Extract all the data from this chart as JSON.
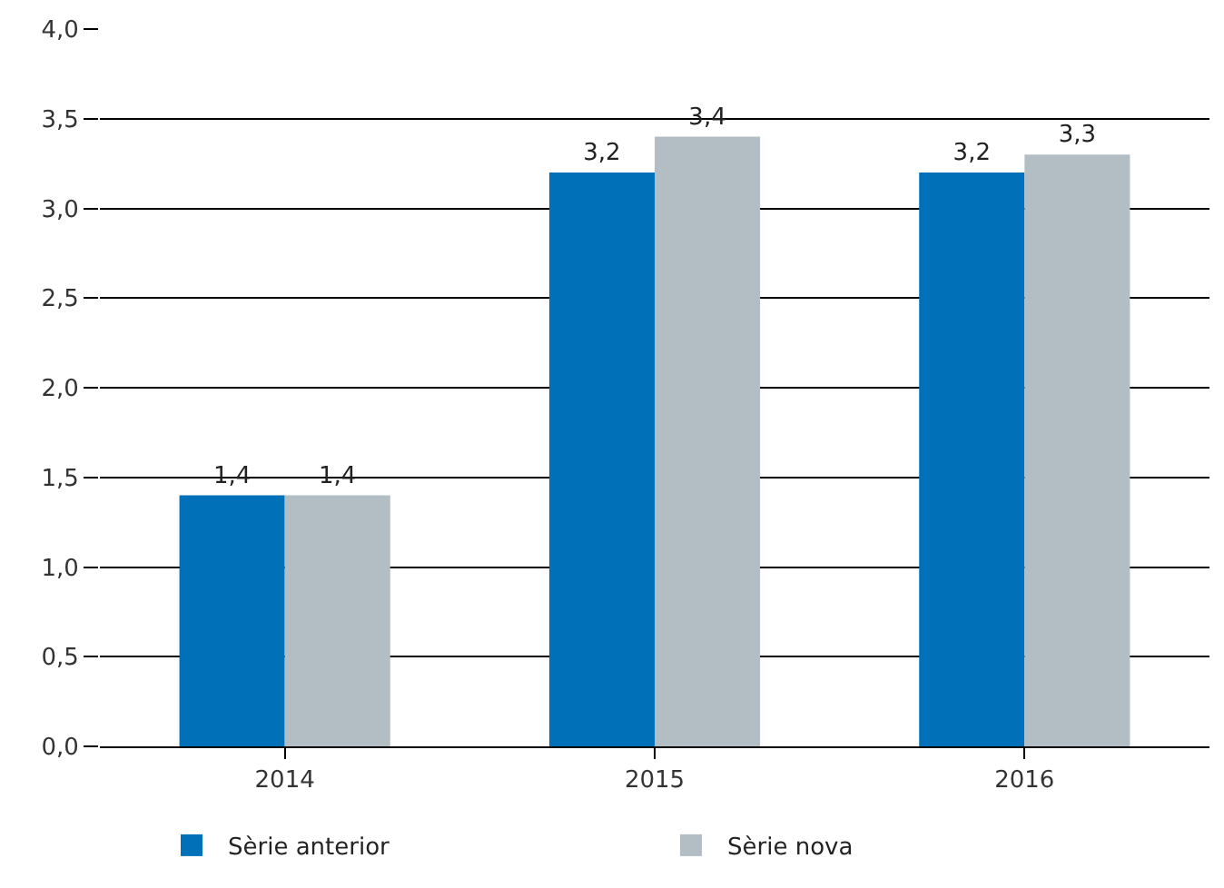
{
  "chart_data": {
    "type": "bar",
    "categories": [
      "2014",
      "2015",
      "2016"
    ],
    "series": [
      {
        "name": "Sèrie anterior",
        "color": "#0070b8",
        "values": [
          1.4,
          3.2,
          3.2
        ],
        "value_labels": [
          "1,4",
          "3,2",
          "3,2"
        ]
      },
      {
        "name": "Sèrie nova",
        "color": "#b3bec4",
        "values": [
          1.4,
          3.4,
          3.3
        ],
        "value_labels": [
          "1,4",
          "3,4",
          "3,3"
        ]
      }
    ],
    "ylim": [
      0,
      4
    ],
    "yticks": [
      {
        "value": 0,
        "label": "0,0"
      },
      {
        "value": 0.5,
        "label": "0,5"
      },
      {
        "value": 1,
        "label": "1,0"
      },
      {
        "value": 1.5,
        "label": "1,5"
      },
      {
        "value": 2,
        "label": "2,0"
      },
      {
        "value": 2.5,
        "label": "2,5"
      },
      {
        "value": 3,
        "label": "3,0"
      },
      {
        "value": 3.5,
        "label": "3,5"
      },
      {
        "value": 4,
        "label": "4,0"
      }
    ],
    "grid": "y",
    "legend": "bottom"
  }
}
